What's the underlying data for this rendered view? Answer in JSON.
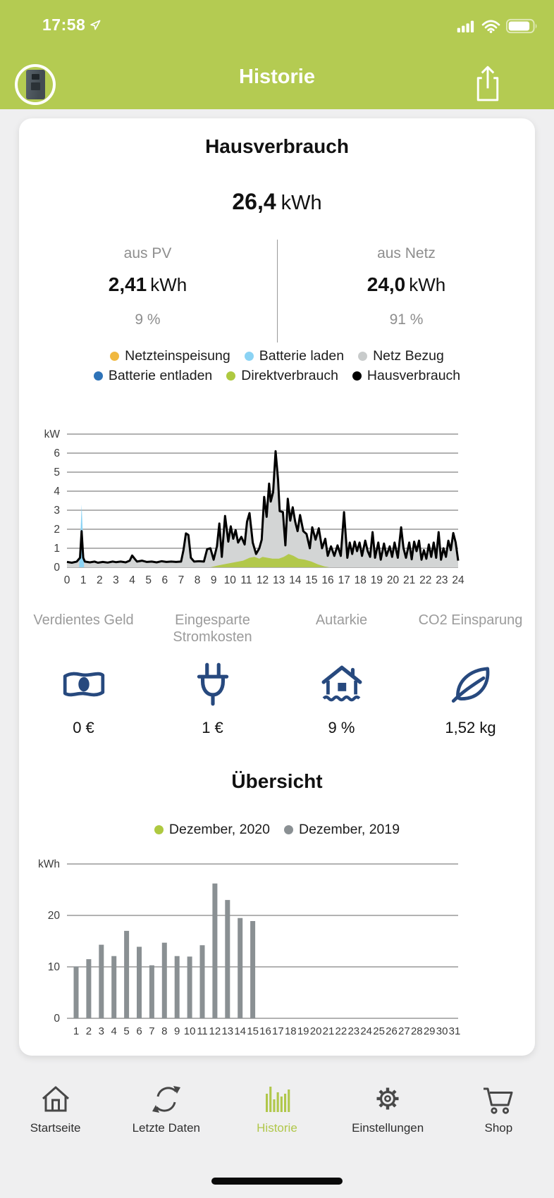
{
  "colors": {
    "header_green": "#b4cb52",
    "active_green": "#b0c74a",
    "page_bg": "#efeff0",
    "navy_icon": "#27497e",
    "bar_gray": "#8a9093",
    "grid_line": "#666666",
    "tick_text": "#3c3c3c"
  },
  "status_bar": {
    "time": "17:58",
    "icons": [
      "location-arrow-icon",
      "cellular-signal-icon",
      "wifi-icon",
      "battery-icon"
    ]
  },
  "header": {
    "title": "Historie",
    "share_icon": "share-icon",
    "avatar_icon": "battery-device-avatar"
  },
  "consumption": {
    "title": "Hausverbrauch",
    "total_value": "26,4",
    "total_unit": "kWh",
    "pv": {
      "label": "aus PV",
      "value": "2,41",
      "unit": "kWh",
      "percent": "9 %"
    },
    "grid": {
      "label": "aus Netz",
      "value": "24,0",
      "unit": "kWh",
      "percent": "91 %"
    }
  },
  "power_legend": {
    "rows": [
      [
        {
          "label": "Netzteinspeisung",
          "color": "#f0b840"
        },
        {
          "label": "Batterie laden",
          "color": "#8bd3f4"
        },
        {
          "label": "Netz Bezug",
          "color": "#c8cbcb"
        }
      ],
      [
        {
          "label": "Batterie entladen",
          "color": "#2e73b8"
        },
        {
          "label": "Direktverbrauch",
          "color": "#aec940"
        },
        {
          "label": "Hausverbrauch",
          "color": "#000000"
        }
      ]
    ]
  },
  "stats": {
    "items": [
      {
        "title": "Verdientes Geld",
        "value": "0 €",
        "icon": "banknote-icon"
      },
      {
        "title": "Eingesparte Stromkosten",
        "value": "1 €",
        "icon": "plug-icon"
      },
      {
        "title": "Autarkie",
        "value": "9 %",
        "icon": "house-icon"
      },
      {
        "title": "CO2 Einsparung",
        "value": "1,52 kg",
        "icon": "leaf-icon"
      }
    ]
  },
  "overview": {
    "title": "Übersicht",
    "legend": [
      {
        "label": "Dezember, 2020",
        "color": "#aec940"
      },
      {
        "label": "Dezember, 2019",
        "color": "#8a9093"
      }
    ]
  },
  "tab_bar": {
    "tabs": [
      {
        "label": "Startseite",
        "icon": "home-icon",
        "active": false
      },
      {
        "label": "Letzte Daten",
        "icon": "sync-icon",
        "active": false
      },
      {
        "label": "Historie",
        "icon": "chart-bars-icon",
        "active": true
      },
      {
        "label": "Einstellungen",
        "icon": "gear-icon",
        "active": false
      },
      {
        "label": "Shop",
        "icon": "cart-icon",
        "active": false
      }
    ]
  },
  "chart_data": [
    {
      "type": "area",
      "title": "Hausverbrauch",
      "ylabel": "kW",
      "xlim": [
        0,
        24
      ],
      "xtick_step": 1,
      "ylim": [
        0,
        7
      ],
      "yticks": [
        0,
        1,
        2,
        3,
        4,
        5,
        6
      ],
      "grid": true,
      "legend_position": "top",
      "series": [
        {
          "name": "Netz Bezug",
          "type": "area",
          "color": "#d3d5d5",
          "points": "ref:Hausverbrauch"
        },
        {
          "name": "Batterie laden",
          "type": "area",
          "color": "#8bd3f4",
          "points": [
            [
              0.75,
              0
            ],
            [
              0.9,
              3.3
            ],
            [
              1.05,
              0
            ]
          ]
        },
        {
          "name": "Direktverbrauch",
          "type": "area",
          "color": "#b2c84b",
          "points": [
            [
              8.8,
              0
            ],
            [
              9.2,
              0.08
            ],
            [
              9.6,
              0.15
            ],
            [
              10,
              0.22
            ],
            [
              10.4,
              0.28
            ],
            [
              10.8,
              0.35
            ],
            [
              11.2,
              0.5
            ],
            [
              11.5,
              0.55
            ],
            [
              11.8,
              0.45
            ],
            [
              12,
              0.55
            ],
            [
              12.3,
              0.5
            ],
            [
              12.6,
              0.45
            ],
            [
              13,
              0.45
            ],
            [
              13.3,
              0.55
            ],
            [
              13.6,
              0.7
            ],
            [
              13.9,
              0.6
            ],
            [
              14.2,
              0.45
            ],
            [
              14.6,
              0.4
            ],
            [
              15,
              0.3
            ],
            [
              15.4,
              0.15
            ],
            [
              15.8,
              0.05
            ],
            [
              16.1,
              0
            ]
          ]
        },
        {
          "name": "Hausverbrauch",
          "type": "line",
          "color": "#000000",
          "points": [
            [
              0,
              0.28
            ],
            [
              0.3,
              0.24
            ],
            [
              0.6,
              0.3
            ],
            [
              0.8,
              0.5
            ],
            [
              0.9,
              1.9
            ],
            [
              1.0,
              0.5
            ],
            [
              1.1,
              0.3
            ],
            [
              1.4,
              0.26
            ],
            [
              1.7,
              0.3
            ],
            [
              1.9,
              0.24
            ],
            [
              2.2,
              0.28
            ],
            [
              2.5,
              0.25
            ],
            [
              2.8,
              0.3
            ],
            [
              3.0,
              0.27
            ],
            [
              3.3,
              0.3
            ],
            [
              3.6,
              0.26
            ],
            [
              3.85,
              0.35
            ],
            [
              4.0,
              0.62
            ],
            [
              4.15,
              0.45
            ],
            [
              4.3,
              0.3
            ],
            [
              4.6,
              0.35
            ],
            [
              4.9,
              0.28
            ],
            [
              5.2,
              0.3
            ],
            [
              5.5,
              0.26
            ],
            [
              5.8,
              0.32
            ],
            [
              6.1,
              0.28
            ],
            [
              6.4,
              0.3
            ],
            [
              6.7,
              0.28
            ],
            [
              7.0,
              0.3
            ],
            [
              7.15,
              0.9
            ],
            [
              7.3,
              1.78
            ],
            [
              7.45,
              1.7
            ],
            [
              7.6,
              0.5
            ],
            [
              7.8,
              0.3
            ],
            [
              8.1,
              0.32
            ],
            [
              8.4,
              0.3
            ],
            [
              8.6,
              0.95
            ],
            [
              8.8,
              1.0
            ],
            [
              9.0,
              0.4
            ],
            [
              9.2,
              1.1
            ],
            [
              9.35,
              2.3
            ],
            [
              9.5,
              0.55
            ],
            [
              9.7,
              2.7
            ],
            [
              9.9,
              1.35
            ],
            [
              10.05,
              2.15
            ],
            [
              10.2,
              1.5
            ],
            [
              10.35,
              1.95
            ],
            [
              10.5,
              1.3
            ],
            [
              10.7,
              1.6
            ],
            [
              10.9,
              1.2
            ],
            [
              11.05,
              2.4
            ],
            [
              11.2,
              2.85
            ],
            [
              11.4,
              1.3
            ],
            [
              11.6,
              0.7
            ],
            [
              11.8,
              1.0
            ],
            [
              11.95,
              1.45
            ],
            [
              12.1,
              3.7
            ],
            [
              12.25,
              2.65
            ],
            [
              12.4,
              4.4
            ],
            [
              12.5,
              3.45
            ],
            [
              12.65,
              3.95
            ],
            [
              12.8,
              6.1
            ],
            [
              12.95,
              4.6
            ],
            [
              13.05,
              2.95
            ],
            [
              13.25,
              2.9
            ],
            [
              13.4,
              1.15
            ],
            [
              13.55,
              3.6
            ],
            [
              13.7,
              2.45
            ],
            [
              13.85,
              3.15
            ],
            [
              14.0,
              2.4
            ],
            [
              14.15,
              1.9
            ],
            [
              14.3,
              2.75
            ],
            [
              14.5,
              1.9
            ],
            [
              14.7,
              1.75
            ],
            [
              14.9,
              1.0
            ],
            [
              15.05,
              2.1
            ],
            [
              15.25,
              1.45
            ],
            [
              15.45,
              2.05
            ],
            [
              15.65,
              1.0
            ],
            [
              15.85,
              1.5
            ],
            [
              16.0,
              0.6
            ],
            [
              16.2,
              1.1
            ],
            [
              16.4,
              0.6
            ],
            [
              16.6,
              1.15
            ],
            [
              16.8,
              0.6
            ],
            [
              17.0,
              2.9
            ],
            [
              17.2,
              0.5
            ],
            [
              17.35,
              1.3
            ],
            [
              17.5,
              0.7
            ],
            [
              17.65,
              1.35
            ],
            [
              17.8,
              0.85
            ],
            [
              17.95,
              1.3
            ],
            [
              18.1,
              0.6
            ],
            [
              18.3,
              1.4
            ],
            [
              18.45,
              0.85
            ],
            [
              18.6,
              0.55
            ],
            [
              18.75,
              1.85
            ],
            [
              18.9,
              0.5
            ],
            [
              19.1,
              1.3
            ],
            [
              19.25,
              0.4
            ],
            [
              19.45,
              1.25
            ],
            [
              19.6,
              0.6
            ],
            [
              19.8,
              1.1
            ],
            [
              19.95,
              0.55
            ],
            [
              20.1,
              1.3
            ],
            [
              20.3,
              0.5
            ],
            [
              20.5,
              2.1
            ],
            [
              20.65,
              1.0
            ],
            [
              20.8,
              0.5
            ],
            [
              21.0,
              1.3
            ],
            [
              21.15,
              0.42
            ],
            [
              21.3,
              1.35
            ],
            [
              21.45,
              0.85
            ],
            [
              21.6,
              1.4
            ],
            [
              21.75,
              0.4
            ],
            [
              21.9,
              0.9
            ],
            [
              22.05,
              0.45
            ],
            [
              22.2,
              1.2
            ],
            [
              22.35,
              0.55
            ],
            [
              22.5,
              1.3
            ],
            [
              22.65,
              0.5
            ],
            [
              22.8,
              1.85
            ],
            [
              22.95,
              0.4
            ],
            [
              23.1,
              1.0
            ],
            [
              23.25,
              0.55
            ],
            [
              23.4,
              1.4
            ],
            [
              23.55,
              0.9
            ],
            [
              23.7,
              1.8
            ],
            [
              23.85,
              1.3
            ],
            [
              24,
              0.35
            ]
          ]
        }
      ]
    },
    {
      "type": "bar",
      "title": "Übersicht",
      "ylabel": "kWh",
      "categories": [
        1,
        2,
        3,
        4,
        5,
        6,
        7,
        8,
        9,
        10,
        11,
        12,
        13,
        14,
        15,
        16,
        17,
        18,
        19,
        20,
        21,
        22,
        23,
        24,
        25,
        26,
        27,
        28,
        29,
        30,
        31
      ],
      "ylim": [
        0,
        30
      ],
      "yticks": [
        0,
        10,
        20
      ],
      "grid": true,
      "legend_position": "top",
      "series": [
        {
          "name": "Dezember, 2020",
          "color": "#aec940",
          "values": []
        },
        {
          "name": "Dezember, 2019",
          "color": "#8a9093",
          "values": [
            10.1,
            11.5,
            14.3,
            12.1,
            17.0,
            13.9,
            10.3,
            14.7,
            12.1,
            12.0,
            14.2,
            26.2,
            23.0,
            19.5,
            18.9
          ]
        }
      ]
    }
  ]
}
